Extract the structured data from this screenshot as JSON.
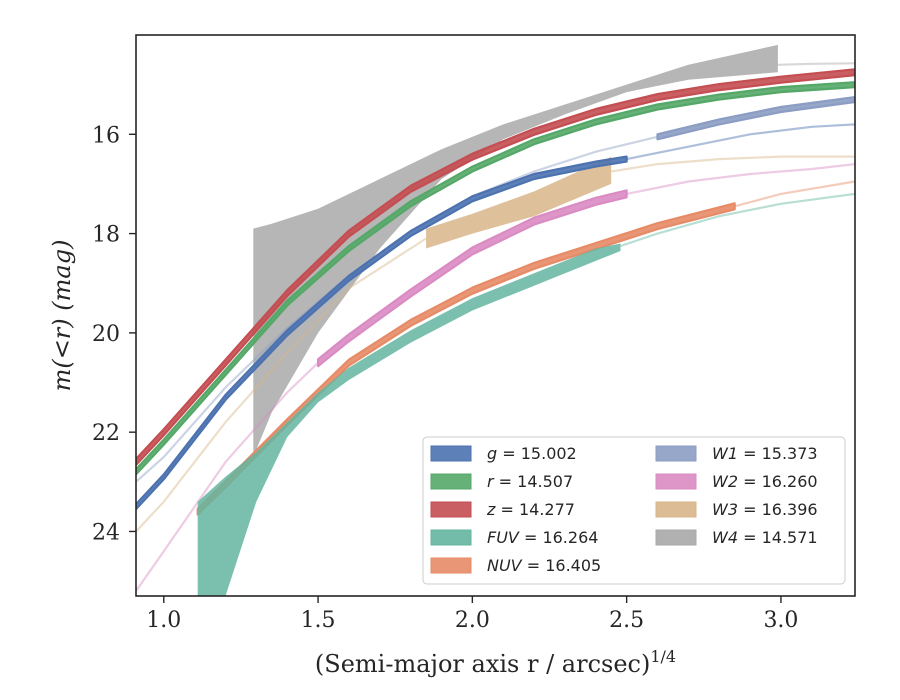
{
  "chart_data": {
    "type": "line",
    "xlabel": "(Semi-major axis r / arcsec)",
    "xlabel_sup": "1/4",
    "ylabel": "m(<r) (mag)",
    "xlim": [
      0.91,
      3.24
    ],
    "ylim": [
      25.3,
      14.0
    ],
    "y_inverted": true,
    "xticks": [
      1.0,
      1.5,
      2.0,
      2.5,
      3.0
    ],
    "xtick_labels": [
      "1.0",
      "1.5",
      "2.0",
      "2.5",
      "3.0"
    ],
    "yticks": [
      16,
      18,
      20,
      22,
      24
    ],
    "ytick_labels": [
      "16",
      "18",
      "20",
      "22",
      "24"
    ],
    "legend_position": "lower-right",
    "grid": false,
    "series": [
      {
        "key": "g",
        "name": "g = 15.002",
        "label_var": "g",
        "label_val": "= 15.002",
        "color": "#4C72B0",
        "band_width": 0.1,
        "x": [
          0.91,
          1.0,
          1.2,
          1.4,
          1.6,
          1.8,
          2.0,
          2.2,
          2.4,
          2.5
        ],
        "y": [
          23.5,
          22.9,
          21.3,
          20.0,
          18.9,
          18.0,
          17.3,
          16.85,
          16.6,
          16.5
        ],
        "fade_x": [
          2.5,
          2.7,
          2.9,
          3.1,
          3.24
        ],
        "fade_y": [
          16.5,
          16.25,
          16.0,
          15.85,
          15.8
        ]
      },
      {
        "key": "r",
        "name": "r = 14.507",
        "label_var": "r",
        "label_val": "= 14.507",
        "color": "#55A868",
        "band_width": 0.1,
        "x": [
          0.91,
          1.0,
          1.2,
          1.4,
          1.6,
          1.8,
          2.0,
          2.2,
          2.4,
          2.6,
          2.8,
          3.0,
          3.24
        ],
        "y": [
          22.8,
          22.2,
          20.8,
          19.4,
          18.3,
          17.4,
          16.7,
          16.15,
          15.75,
          15.45,
          15.25,
          15.1,
          15.0
        ],
        "fade_x": [],
        "fade_y": []
      },
      {
        "key": "z",
        "name": "z = 14.277",
        "label_var": "z",
        "label_val": "= 14.277",
        "color": "#C44E52",
        "band_width": 0.12,
        "x": [
          0.91,
          1.0,
          1.2,
          1.4,
          1.6,
          1.8,
          2.0,
          2.2,
          2.4,
          2.6,
          2.8,
          3.0,
          3.24
        ],
        "y": [
          22.6,
          22.0,
          20.6,
          19.2,
          18.0,
          17.1,
          16.45,
          15.95,
          15.55,
          15.25,
          15.05,
          14.9,
          14.75
        ],
        "fade_x": [],
        "fade_y": []
      },
      {
        "key": "FUV",
        "name": "FUV = 16.264",
        "label_var": "FUV",
        "label_val": "= 16.264",
        "color": "#64B5A0",
        "band_width": 0.0,
        "x": [
          1.11,
          1.2,
          1.3,
          1.4,
          1.5,
          1.6,
          1.8,
          2.0,
          2.2,
          2.4,
          2.48
        ],
        "y_upper": [
          23.4,
          22.9,
          22.4,
          21.8,
          21.2,
          20.7,
          19.95,
          19.3,
          18.8,
          18.3,
          18.2
        ],
        "y_lower": [
          25.3,
          25.3,
          23.4,
          22.1,
          21.4,
          20.95,
          20.2,
          19.55,
          19.05,
          18.55,
          18.35
        ],
        "fade_x": [
          2.48,
          2.6,
          2.8,
          3.0,
          3.24
        ],
        "fade_y": [
          18.25,
          18.0,
          17.65,
          17.4,
          17.2
        ]
      },
      {
        "key": "NUV",
        "name": "NUV = 16.405",
        "label_var": "NUV",
        "label_val": "= 16.405",
        "color": "#E78B67",
        "band_width": 0.12,
        "x": [
          1.11,
          1.2,
          1.4,
          1.6,
          1.8,
          2.0,
          2.2,
          2.4,
          2.6,
          2.85
        ],
        "y": [
          23.6,
          23.05,
          21.8,
          20.6,
          19.8,
          19.15,
          18.65,
          18.25,
          17.85,
          17.45
        ],
        "fade_x": [
          2.85,
          3.0,
          3.24
        ],
        "fade_y": [
          17.45,
          17.2,
          16.95
        ]
      },
      {
        "key": "W1",
        "name": "W1 = 15.373",
        "label_var": "W1",
        "label_val": "= 15.373",
        "color": "#8C9DC4",
        "band_width": 0.1,
        "x": [
          2.6,
          2.8,
          3.0,
          3.24
        ],
        "y": [
          16.05,
          15.75,
          15.5,
          15.3
        ],
        "fade_x": [
          0.91,
          1.0,
          1.2,
          1.4,
          1.6,
          1.8,
          2.0,
          2.2,
          2.4,
          2.6
        ],
        "fade_y": [
          23.0,
          22.5,
          21.1,
          19.9,
          18.85,
          17.95,
          17.25,
          16.75,
          16.35,
          16.05
        ]
      },
      {
        "key": "W2",
        "name": "W2 = 16.260",
        "label_var": "W2",
        "label_val": "= 16.260",
        "color": "#DA8BC3",
        "band_width": 0.14,
        "x": [
          1.5,
          1.6,
          1.8,
          2.0,
          2.2,
          2.4,
          2.5
        ],
        "y": [
          20.6,
          20.1,
          19.2,
          18.35,
          17.75,
          17.35,
          17.2
        ],
        "fade_x": [
          0.91,
          1.0,
          1.2,
          1.4,
          1.5
        ],
        "fade_y": [
          25.2,
          24.4,
          22.6,
          21.2,
          20.6
        ],
        "fade2_x": [
          2.5,
          2.7,
          2.9,
          3.1,
          3.24
        ],
        "fade2_y": [
          17.2,
          16.95,
          16.8,
          16.7,
          16.6
        ]
      },
      {
        "key": "W3",
        "name": "W3 = 16.396",
        "label_var": "W3",
        "label_val": "= 16.396",
        "color": "#D8B58A",
        "band_width": 0.0,
        "x": [
          1.85,
          2.0,
          2.2,
          2.45
        ],
        "y_upper": [
          17.9,
          17.6,
          17.15,
          16.45
        ],
        "y_lower": [
          18.3,
          18.0,
          17.65,
          17.0
        ],
        "fade_x": [
          0.91,
          1.0,
          1.2,
          1.4,
          1.6,
          1.85
        ],
        "fade_y": [
          24.0,
          23.4,
          21.8,
          20.4,
          19.1,
          18.1
        ],
        "fade2_x": [
          2.45,
          2.6,
          2.8,
          3.0,
          3.24
        ],
        "fade2_y": [
          16.75,
          16.6,
          16.5,
          16.45,
          16.45
        ]
      },
      {
        "key": "W4",
        "name": "W4 = 14.571",
        "label_var": "W4",
        "label_val": "= 14.571",
        "color": "#A9A9A9",
        "band_width": 0.0,
        "x": [
          1.29,
          1.35,
          1.5,
          1.7,
          1.9,
          2.1,
          2.3,
          2.5,
          2.7,
          2.99
        ],
        "y_upper": [
          17.9,
          17.8,
          17.5,
          16.9,
          16.3,
          15.8,
          15.4,
          15.0,
          14.6,
          14.2
        ],
        "y_lower": [
          22.5,
          21.6,
          20.0,
          18.3,
          16.9,
          16.1,
          15.6,
          15.15,
          14.9,
          14.75
        ],
        "fade_x": [
          2.99,
          3.1,
          3.24
        ],
        "fade_y": [
          14.6,
          14.58,
          14.57
        ]
      }
    ]
  }
}
